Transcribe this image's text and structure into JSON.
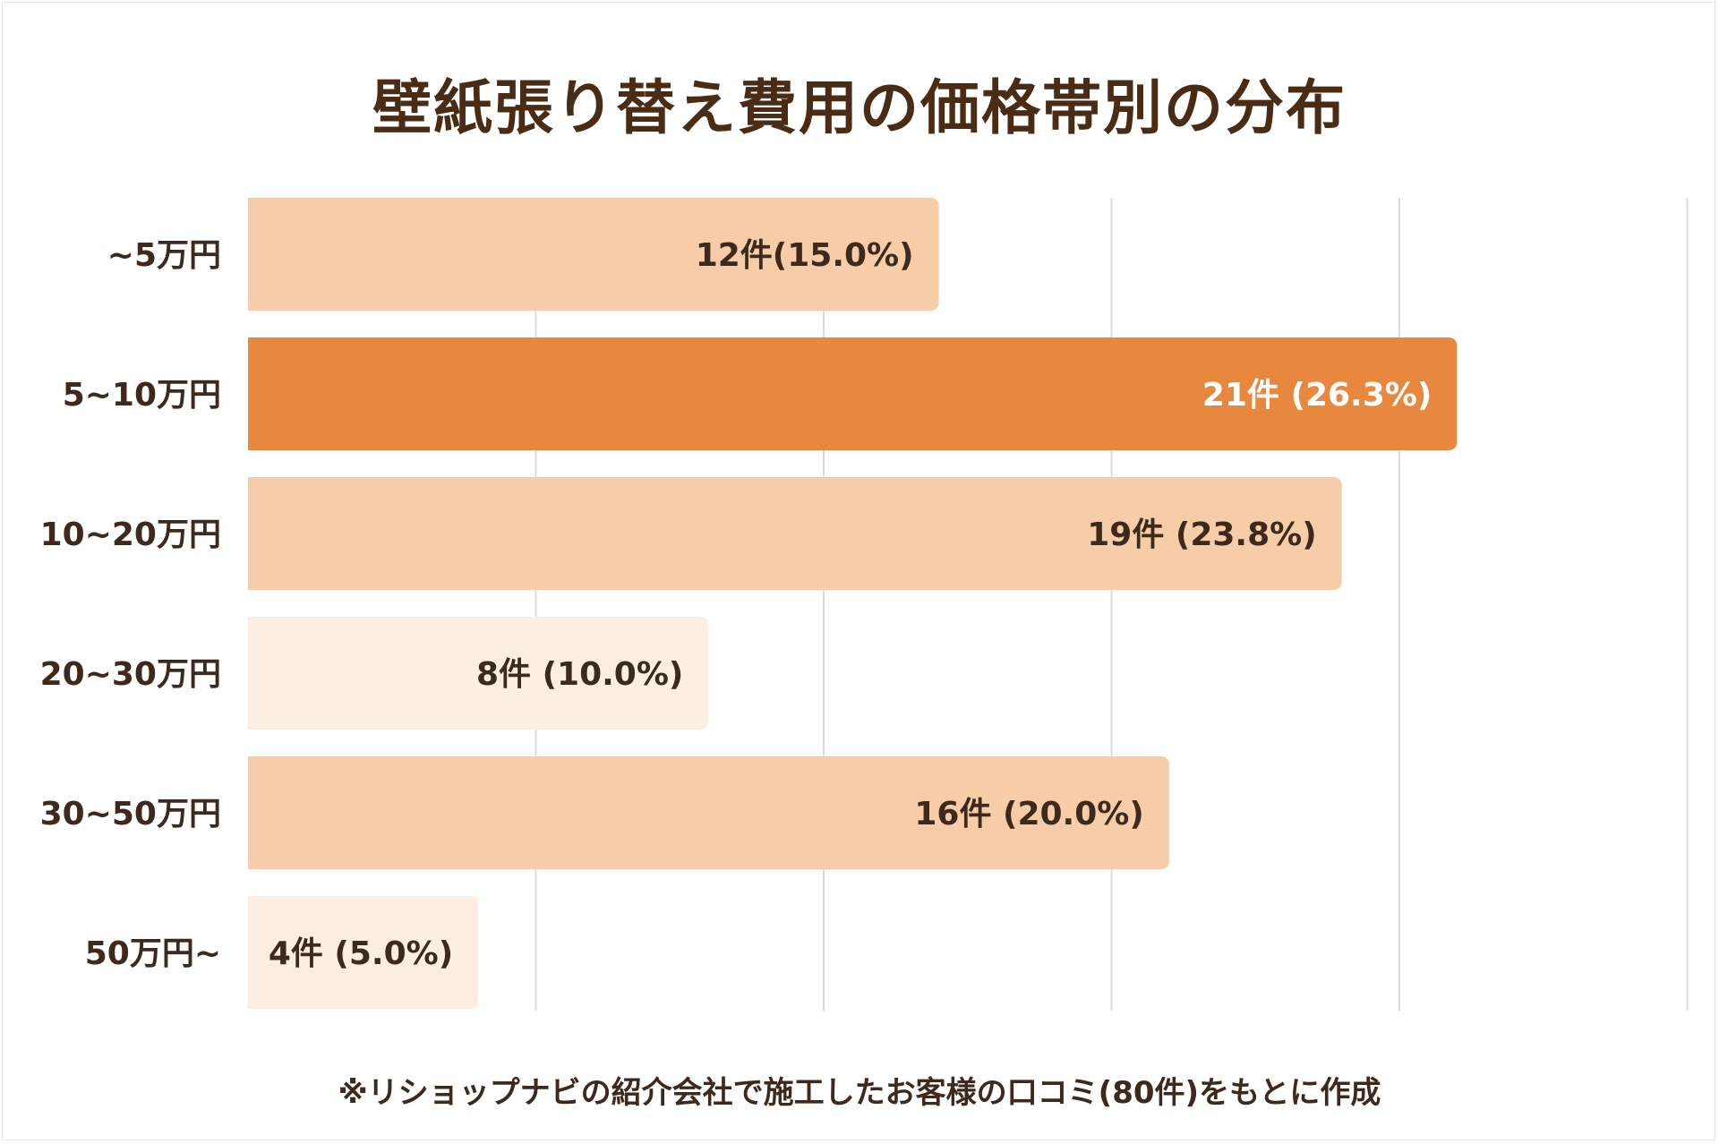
{
  "chart_data": {
    "type": "bar",
    "orientation": "horizontal",
    "title": "壁紙張り替え費用の価格帯別の分布",
    "categories": [
      "~5万円",
      "5~10万円",
      "10~20万円",
      "20~30万円",
      "30~50万円",
      "50万円~"
    ],
    "values": [
      12,
      21,
      19,
      8,
      16,
      4
    ],
    "percentages": [
      15.0,
      26.3,
      23.8,
      10.0,
      20.0,
      5.0
    ],
    "data_labels": [
      "12件(15.0%)",
      "21件 (26.3%)",
      "19件 (23.8%)",
      "8件 (10.0%)",
      "16件 (20.0%)",
      "4件 (5.0%)"
    ],
    "xlim": [
      0,
      25
    ],
    "x_gridlines": [
      5,
      10,
      15,
      20,
      25
    ],
    "grid": true,
    "xlabel": "",
    "ylabel": "",
    "bar_colors": [
      "#f6cda8",
      "#e8883f",
      "#f6cda8",
      "#fdeee2",
      "#f6cda8",
      "#fdeee2"
    ],
    "label_colors": [
      "#3d2a1c",
      "#ffffff",
      "#3d2a1c",
      "#3d2a1c",
      "#3d2a1c",
      "#3d2a1c"
    ],
    "gridline_color": "#dcdcdc"
  },
  "note": "※リショップナビの紹介会社で施工したお客様の口コミ(80件)をもとに作成"
}
